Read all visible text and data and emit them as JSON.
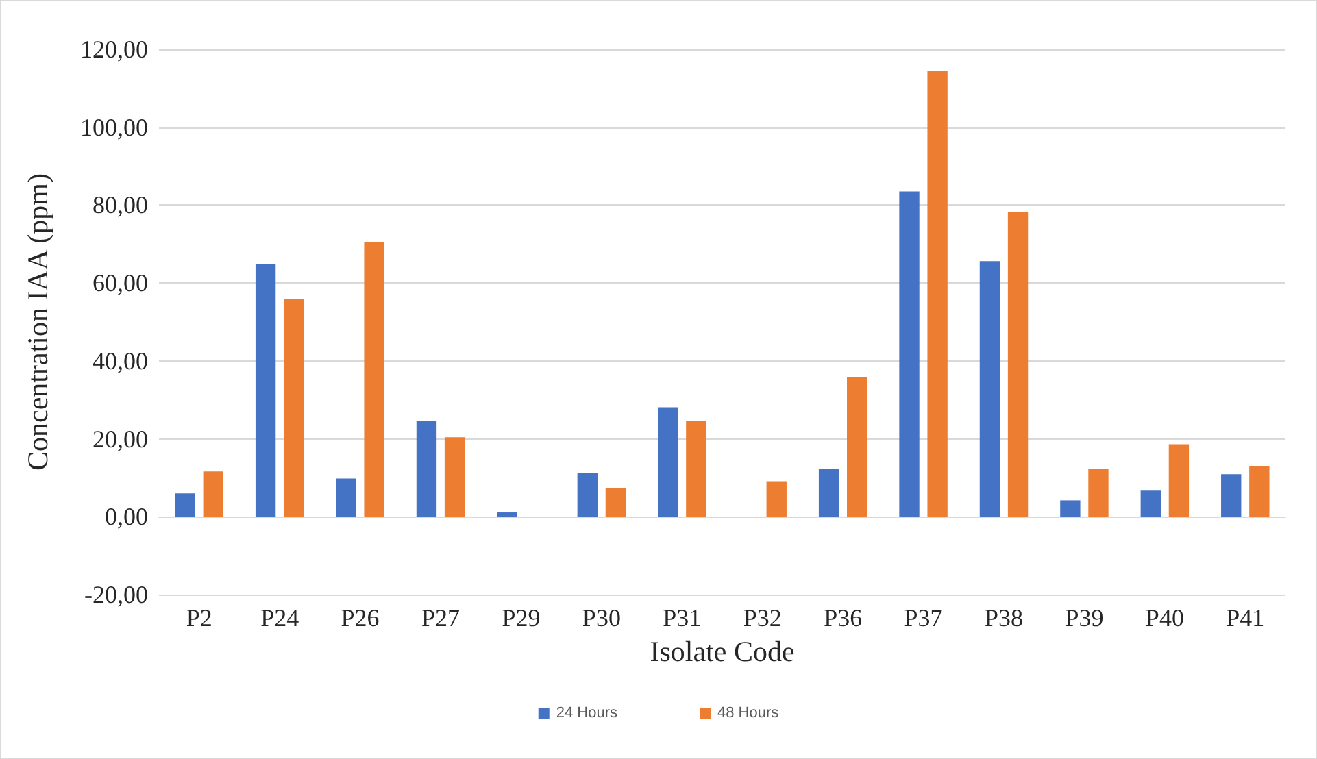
{
  "chart_data": {
    "type": "bar",
    "xlabel": "Isolate Code",
    "ylabel": "Concentration IAA (ppm)",
    "categories": [
      "P2",
      "P24",
      "P26",
      "P27",
      "P29",
      "P30",
      "P31",
      "P32",
      "P36",
      "P37",
      "P38",
      "P39",
      "P40",
      "P41"
    ],
    "series": [
      {
        "name": "24 Hours",
        "color": "#4472c4",
        "values": [
          6.0,
          64.9,
          9.8,
          24.6,
          1.1,
          11.2,
          28.1,
          0,
          12.3,
          83.5,
          65.6,
          4.2,
          6.7,
          10.9
        ]
      },
      {
        "name": "48 Hours",
        "color": "#ed7d31",
        "values": [
          11.6,
          55.8,
          70.5,
          20.4,
          0,
          7.4,
          24.6,
          9.1,
          35.8,
          114.4,
          78.2,
          12.3,
          18.6,
          13.0
        ]
      }
    ],
    "ylim": [
      -20,
      120
    ],
    "yticks": [
      {
        "value": -20,
        "label": "-20,00"
      },
      {
        "value": 0,
        "label": "0,00"
      },
      {
        "value": 20,
        "label": "20,00"
      },
      {
        "value": 40,
        "label": "40,00"
      },
      {
        "value": 60,
        "label": "60,00"
      },
      {
        "value": 80,
        "label": "80,00"
      },
      {
        "value": 100,
        "label": "100,00"
      },
      {
        "value": 120,
        "label": "120,00"
      }
    ],
    "grid": "y",
    "legend": "bottom"
  }
}
